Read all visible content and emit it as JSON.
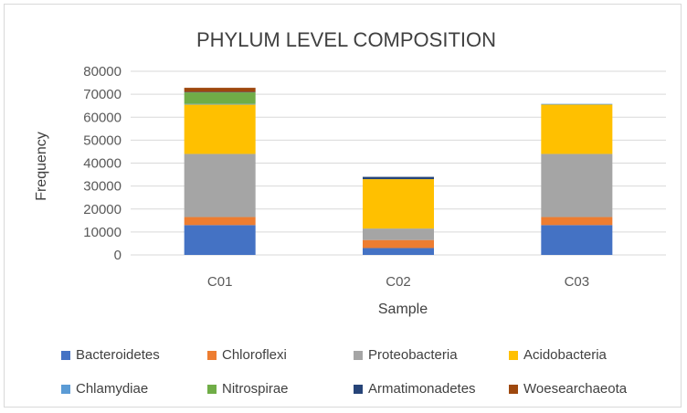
{
  "chart_data": {
    "type": "bar",
    "stacked": true,
    "title": "PHYLUM LEVEL COMPOSITION",
    "xlabel": "Sample",
    "ylabel": "Frequency",
    "categories": [
      "C01",
      "C02",
      "C03"
    ],
    "ylim": [
      0,
      80000
    ],
    "yticks": [
      "0",
      "10000",
      "20000",
      "30000",
      "40000",
      "50000",
      "60000",
      "70000",
      "80000"
    ],
    "grid": true,
    "legend_position": "bottom",
    "series": [
      {
        "name": "Bacteroidetes",
        "color": "#4472C4",
        "values": [
          13000,
          3000,
          13000
        ]
      },
      {
        "name": "Chloroflexi",
        "color": "#ED7D31",
        "values": [
          3500,
          3500,
          3500
        ]
      },
      {
        "name": "Proteobacteria",
        "color": "#A5A5A5",
        "values": [
          27500,
          5000,
          27500
        ]
      },
      {
        "name": "Acidobacteria",
        "color": "#FFC000",
        "values": [
          21500,
          21500,
          21500
        ]
      },
      {
        "name": "Chlamydiae",
        "color": "#5B9BD5",
        "values": [
          300,
          0,
          300
        ]
      },
      {
        "name": "Nitrospirae",
        "color": "#70AD47",
        "values": [
          5000,
          0,
          0
        ]
      },
      {
        "name": "Armatimonadetes",
        "color": "#264478",
        "values": [
          200,
          1000,
          0
        ]
      },
      {
        "name": "Woesearchaeota",
        "color": "#9E480E",
        "values": [
          1800,
          0,
          0
        ]
      }
    ]
  }
}
